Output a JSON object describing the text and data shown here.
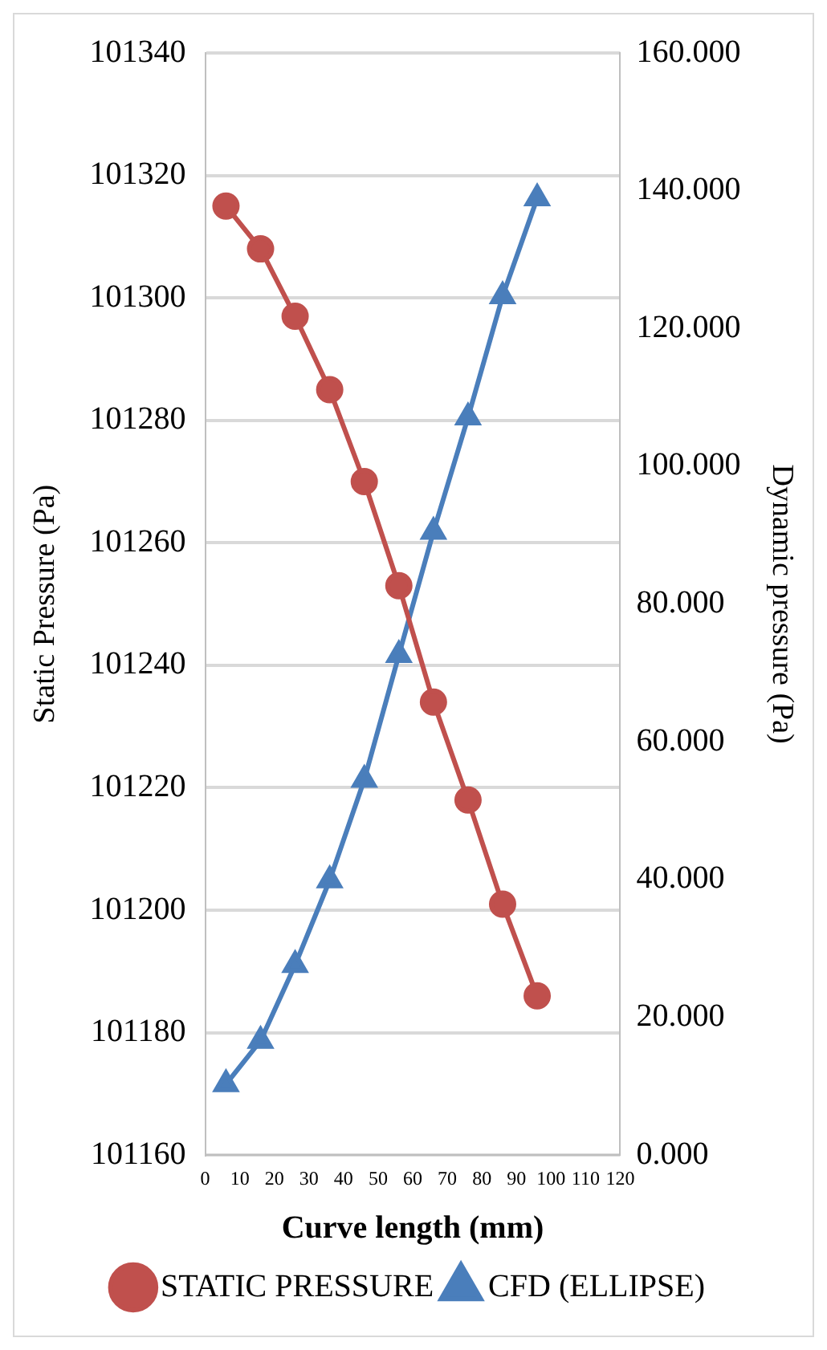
{
  "chart_data": {
    "type": "line",
    "xlabel": "Curve length (mm)",
    "ylabel": "Static Pressure (Pa)",
    "y2label": "Dynamic pressure (Pa)",
    "x": [
      6,
      16,
      26,
      36,
      46,
      56,
      66,
      76,
      86,
      96
    ],
    "series": [
      {
        "name": "STATIC PRESSURE",
        "color": "#c0504d",
        "marker": "circle",
        "values": [
          101315,
          101308,
          101297,
          101285,
          101270,
          101253,
          101234,
          101218,
          101201,
          101186
        ]
      },
      {
        "name": "CFD (ELLIPSE)",
        "color": "#4a7ebb",
        "marker": "triangle",
        "axis": "y2",
        "values": [
          10.3,
          16.6,
          27.6,
          39.9,
          54.5,
          72.6,
          90.5,
          107.1,
          124.7,
          138.9
        ]
      }
    ],
    "xlim": [
      0,
      120
    ],
    "xticks": [
      0,
      10,
      20,
      30,
      40,
      50,
      60,
      70,
      80,
      90,
      100,
      110,
      120
    ],
    "ylim": [
      101160,
      101340
    ],
    "yticks": [
      101160,
      101180,
      101200,
      101220,
      101240,
      101260,
      101280,
      101300,
      101320,
      101340
    ],
    "y2lim": [
      0,
      160
    ],
    "y2ticks": [
      {
        "value": 0,
        "label": "0.000"
      },
      {
        "value": 20,
        "label": "20.000"
      },
      {
        "value": 40,
        "label": "40.000"
      },
      {
        "value": 60,
        "label": "60.000"
      },
      {
        "value": 80,
        "label": "80.000"
      },
      {
        "value": 100,
        "label": "100.000"
      },
      {
        "value": 120,
        "label": "120.000"
      },
      {
        "value": 140,
        "label": "140.000"
      },
      {
        "value": 160,
        "label": "160.000"
      }
    ],
    "grid": "y",
    "legend": "bottom"
  }
}
